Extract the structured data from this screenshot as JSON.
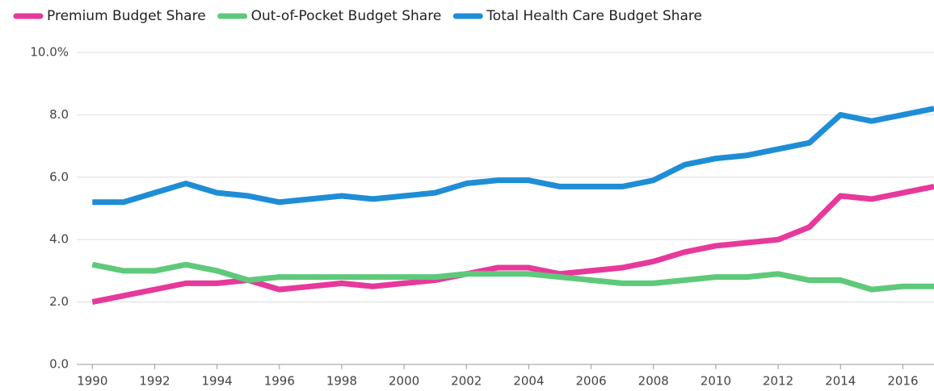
{
  "chart_data": {
    "type": "line",
    "x": [
      1990,
      1991,
      1992,
      1993,
      1994,
      1995,
      1996,
      1997,
      1998,
      1999,
      2000,
      2001,
      2002,
      2003,
      2004,
      2005,
      2006,
      2007,
      2008,
      2009,
      2010,
      2011,
      2012,
      2013,
      2014,
      2015,
      2016,
      2017
    ],
    "series": [
      {
        "name": "Premium Budget Share",
        "color": "#e6399b",
        "values": [
          2.0,
          2.2,
          2.4,
          2.6,
          2.6,
          2.7,
          2.4,
          2.5,
          2.6,
          2.5,
          2.6,
          2.7,
          2.9,
          3.1,
          3.1,
          2.9,
          3.0,
          3.1,
          3.3,
          3.6,
          3.8,
          3.9,
          4.0,
          4.4,
          5.4,
          5.3,
          5.5,
          5.7
        ]
      },
      {
        "name": "Out-of-Pocket Budget Share",
        "color": "#5ec97a",
        "values": [
          3.2,
          3.0,
          3.0,
          3.2,
          3.0,
          2.7,
          2.8,
          2.8,
          2.8,
          2.8,
          2.8,
          2.8,
          2.9,
          2.9,
          2.9,
          2.8,
          2.7,
          2.6,
          2.6,
          2.7,
          2.8,
          2.8,
          2.9,
          2.7,
          2.7,
          2.4,
          2.5,
          2.5
        ]
      },
      {
        "name": "Total Health Care Budget Share",
        "color": "#1f8dd6",
        "values": [
          5.2,
          5.2,
          5.5,
          5.8,
          5.5,
          5.4,
          5.2,
          5.3,
          5.4,
          5.3,
          5.4,
          5.5,
          5.8,
          5.9,
          5.9,
          5.7,
          5.7,
          5.7,
          5.9,
          6.4,
          6.6,
          6.7,
          6.9,
          7.1,
          8.0,
          7.8,
          8.0,
          8.2
        ]
      }
    ],
    "xlim": [
      1989.5,
      2017
    ],
    "xticks": [
      1990,
      1992,
      1994,
      1996,
      1998,
      2000,
      2002,
      2004,
      2006,
      2008,
      2010,
      2012,
      2014,
      2016
    ],
    "ylim": [
      0,
      10
    ],
    "yticks": [
      {
        "value": 0,
        "label": "0.0"
      },
      {
        "value": 2,
        "label": "2.0"
      },
      {
        "value": 4,
        "label": "4.0"
      },
      {
        "value": 6,
        "label": "6.0"
      },
      {
        "value": 8,
        "label": "8.0"
      },
      {
        "value": 10,
        "label": "10.0%"
      }
    ],
    "grid": true
  }
}
